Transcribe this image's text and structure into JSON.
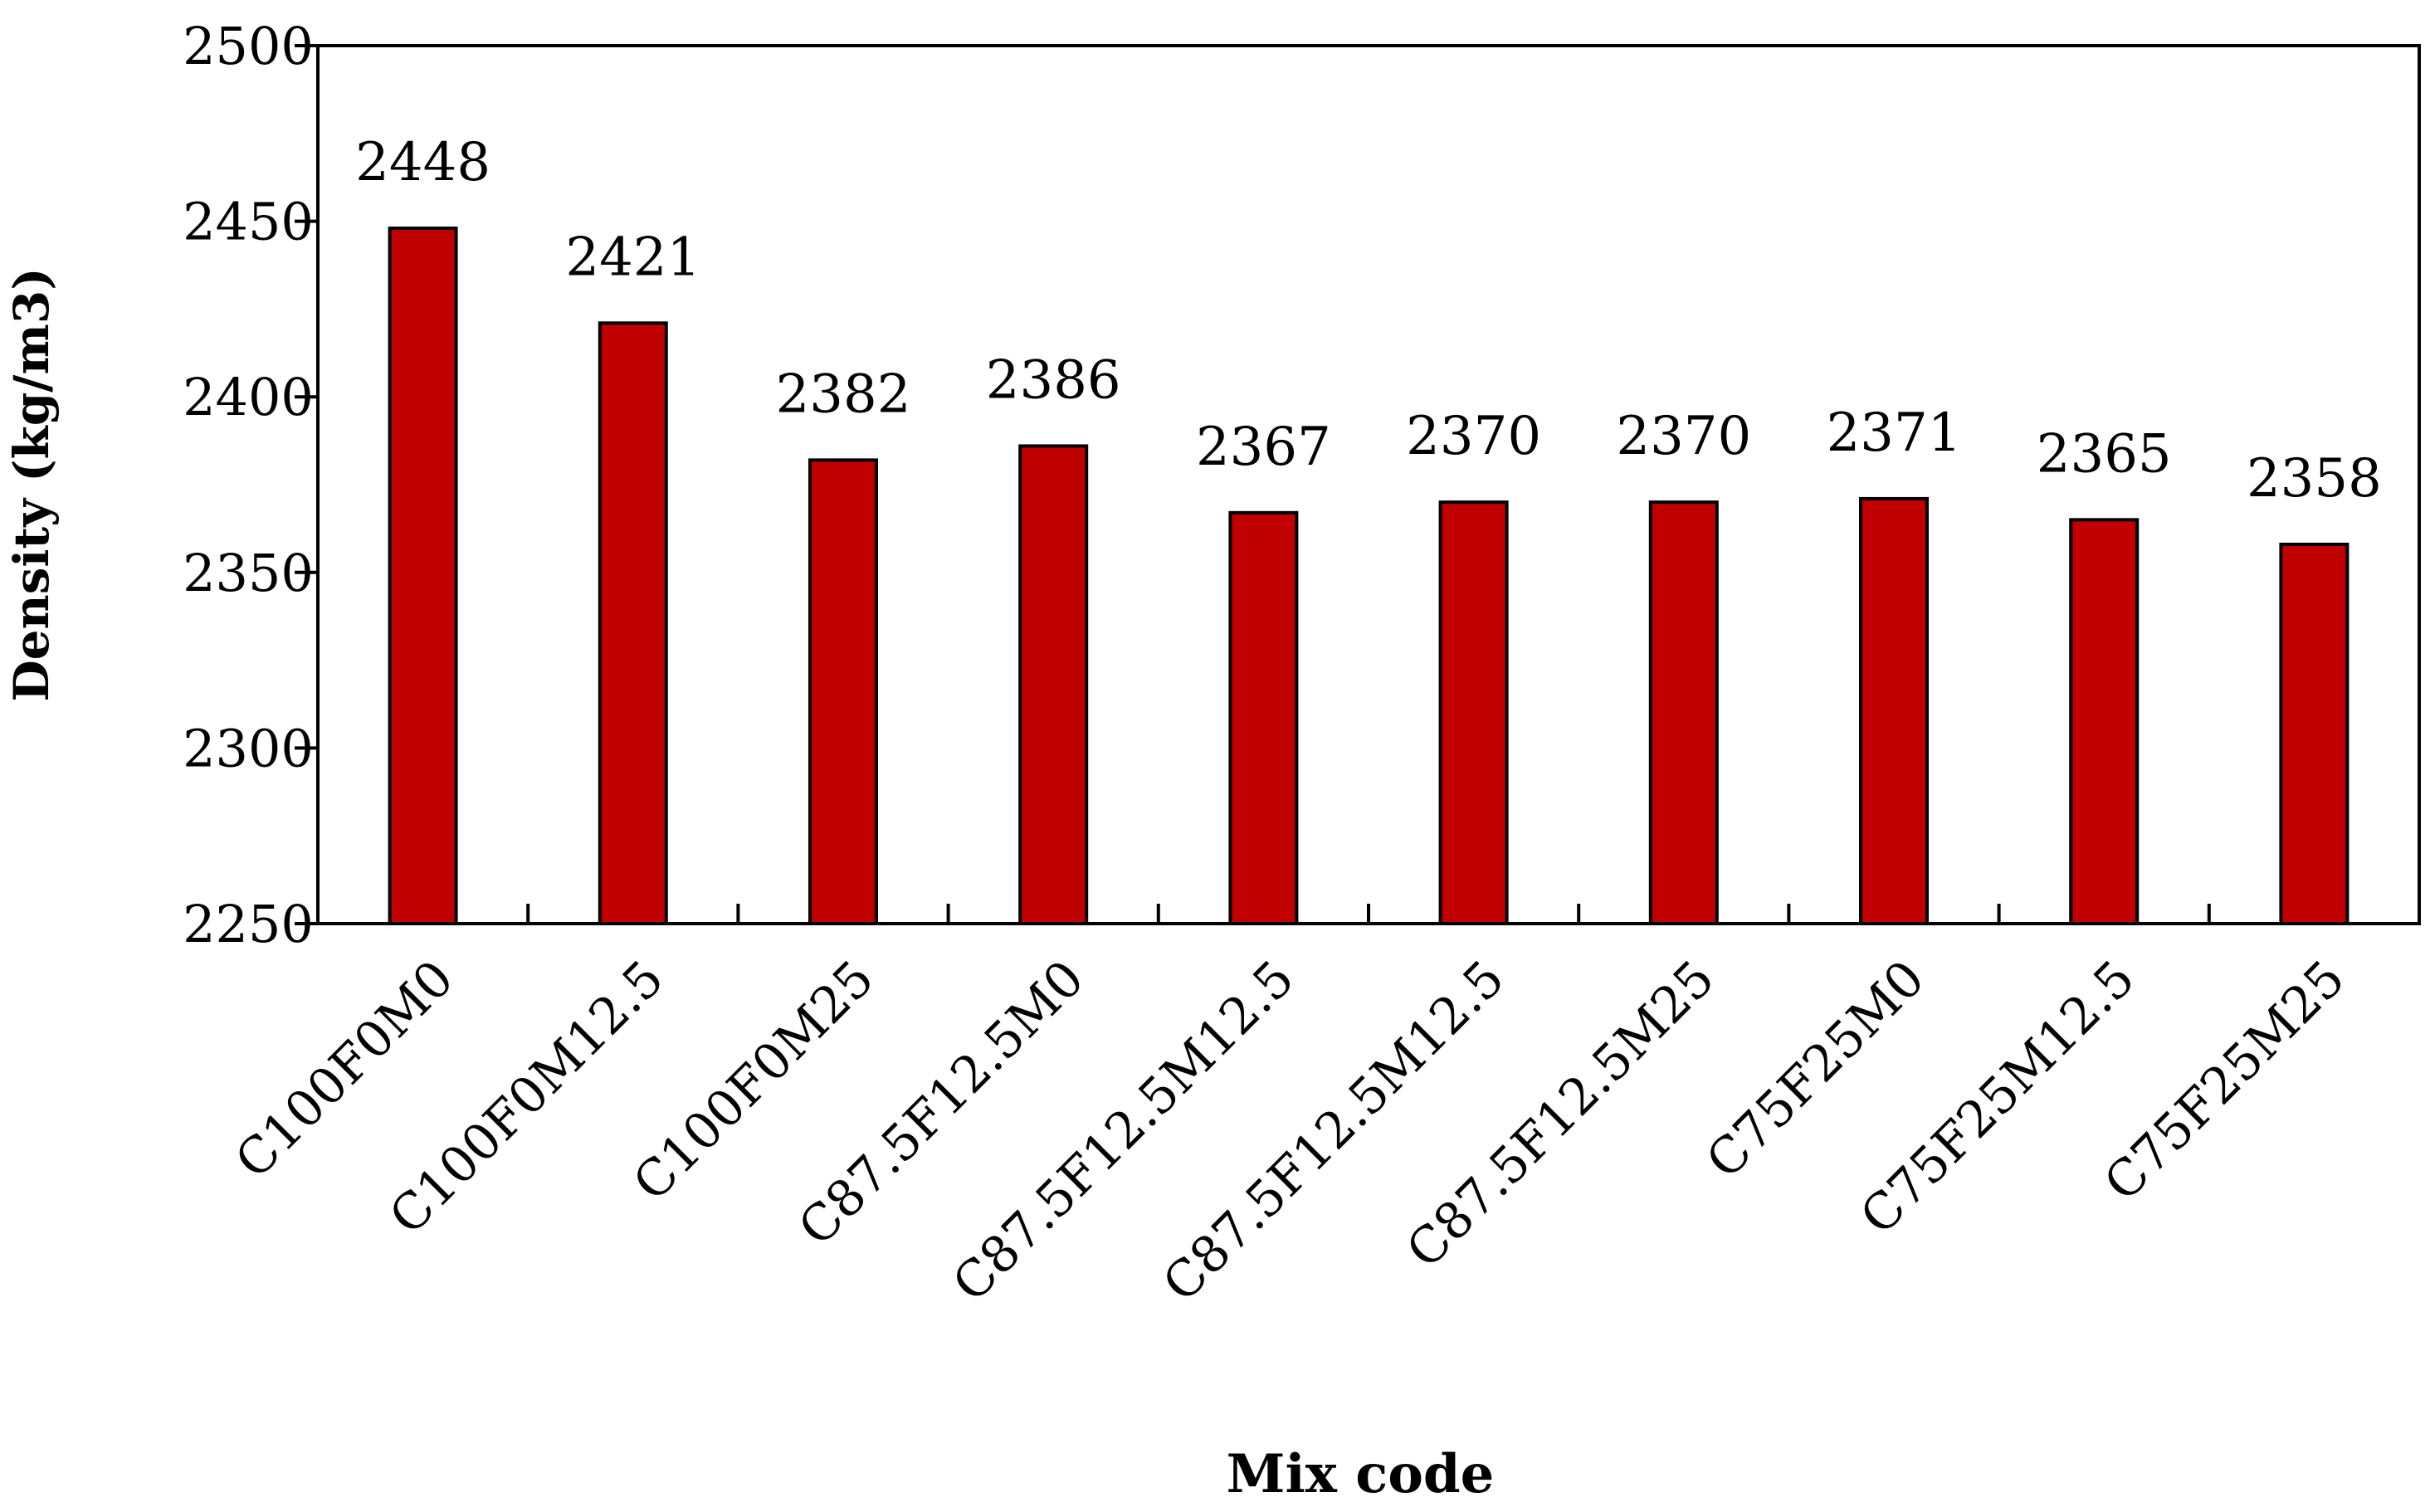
{
  "chart_data": {
    "type": "bar",
    "title": "",
    "xlabel": "Mix code",
    "ylabel": "Density (kg/m3)",
    "ylim": [
      2250,
      2500
    ],
    "yticks": [
      2250,
      2300,
      2350,
      2400,
      2450,
      2500
    ],
    "grid": false,
    "legend": "none",
    "bar_color": "#C00000",
    "categories": [
      "C100F0M0",
      "C100F0M12.5",
      "C100F0M25",
      "C87.5F12.5M0",
      "C87.5F12.5M12.5",
      "C87.5F12.5M12.5",
      "C87.5F12.5M25",
      "C75F25M0",
      "C75F25M12.5",
      "C75F25M25"
    ],
    "values": [
      2448,
      2421,
      2382,
      2386,
      2367,
      2370,
      2370,
      2371,
      2365,
      2358
    ],
    "data_labels": [
      "2448",
      "2421",
      "2382",
      "2386",
      "2367",
      "2370",
      "2370",
      "2371",
      "2365",
      "2358"
    ]
  }
}
